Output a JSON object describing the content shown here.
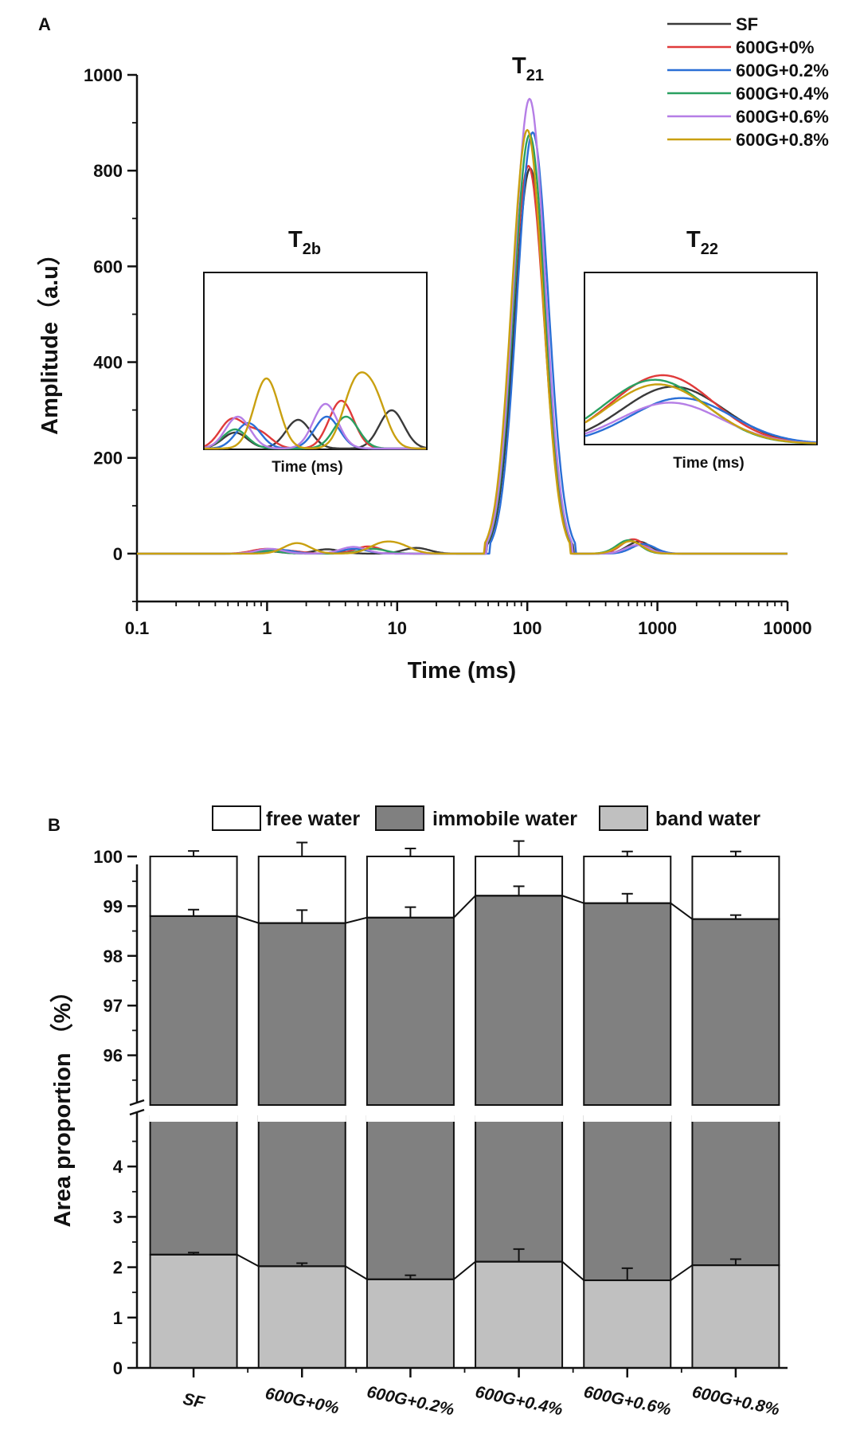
{
  "chart_data": [
    {
      "type": "line",
      "panel_label": "A",
      "xlabel": "Time (ms)",
      "ylabel": "Amplitude（a.u）",
      "x_scale": "log",
      "xlim": [
        0.1,
        10000
      ],
      "ylim": [
        -100,
        1000
      ],
      "x_ticks": [
        "0.1",
        "1",
        "10",
        "100",
        "1000",
        "10000"
      ],
      "y_ticks": [
        "0",
        "200",
        "400",
        "600",
        "800",
        "1000"
      ],
      "peak_labels": [
        {
          "base": "T",
          "sub": "21"
        },
        {
          "base": "T",
          "sub": "2b"
        },
        {
          "base": "T",
          "sub": "22"
        }
      ],
      "inset_xlabel": "Time (ms)",
      "legend_position": "top-right",
      "series": [
        {
          "name": "SF",
          "color": "#3a3a3a",
          "t21_peak": 805,
          "t21_center_ms": 105,
          "t2b_peaks": [
            [
              1.0,
              5
            ],
            [
              2.9,
              9
            ],
            [
              14,
              12
            ]
          ],
          "t22_peak": [
            720,
            25
          ]
        },
        {
          "name": "600G+0%",
          "color": "#e03a3a",
          "t21_peak": 810,
          "t21_center_ms": 102,
          "t2b_peaks": [
            [
              0.95,
              9
            ],
            [
              1.5,
              5
            ],
            [
              6.0,
              15
            ]
          ],
          "t22_peak": [
            650,
            30
          ]
        },
        {
          "name": "600G+0.2%",
          "color": "#2a6fd6",
          "t21_peak": 880,
          "t21_center_ms": 110,
          "t2b_peaks": [
            [
              1.25,
              8
            ],
            [
              4.7,
              10
            ]
          ],
          "t22_peak": [
            780,
            20
          ]
        },
        {
          "name": "600G+0.4%",
          "color": "#2aa060",
          "t21_peak": 875,
          "t21_center_ms": 104,
          "t2b_peaks": [
            [
              1.0,
              6
            ],
            [
              6.5,
              10
            ]
          ],
          "t22_peak": [
            600,
            28
          ]
        },
        {
          "name": "600G+0.6%",
          "color": "#b57ee6",
          "t21_peak": 950,
          "t21_center_ms": 104,
          "t2b_peaks": [
            [
              1.05,
              10
            ],
            [
              4.6,
              14
            ]
          ],
          "t22_peak": [
            700,
            18
          ]
        },
        {
          "name": "600G+0.8%",
          "color": "#c9a010",
          "t21_peak": 885,
          "t21_center_ms": 100,
          "t2b_peaks": [
            [
              1.7,
              22
            ],
            [
              7.5,
              18
            ],
            [
              10.5,
              15
            ]
          ],
          "t22_peak": [
            620,
            26
          ]
        }
      ]
    },
    {
      "type": "bar",
      "stacked": true,
      "panel_label": "B",
      "ylabel": "Area proportion （%）",
      "categories": [
        "SF",
        "600G+0%",
        "600G+0.2%",
        "600G+0.4%",
        "600G+0.6%",
        "600G+0.8%"
      ],
      "y_axis_break": [
        5,
        95
      ],
      "lower_ylim": [
        0,
        5
      ],
      "upper_ylim": [
        95,
        100
      ],
      "lower_ticks": [
        "0",
        "1",
        "2",
        "3",
        "4"
      ],
      "upper_ticks": [
        "96",
        "97",
        "98",
        "99",
        "100"
      ],
      "legend_position": "top",
      "series": [
        {
          "name": "band water",
          "color": "#c0c0c0",
          "values": [
            2.25,
            2.02,
            1.76,
            2.11,
            1.74,
            2.04
          ],
          "errors": [
            0.04,
            0.06,
            0.08,
            0.25,
            0.24,
            0.12
          ]
        },
        {
          "name": "immobile water",
          "color": "#808080",
          "cumulative_top": [
            98.8,
            98.66,
            98.77,
            99.21,
            99.06,
            98.74
          ],
          "errors": [
            0.13,
            0.26,
            0.21,
            0.19,
            0.19,
            0.08
          ]
        },
        {
          "name": "free water",
          "color": "#ffffff",
          "cumulative_top": [
            100,
            100,
            100,
            100,
            100,
            100
          ],
          "errors": [
            0.11,
            0.28,
            0.16,
            0.31,
            0.1,
            0.1
          ]
        }
      ]
    }
  ]
}
